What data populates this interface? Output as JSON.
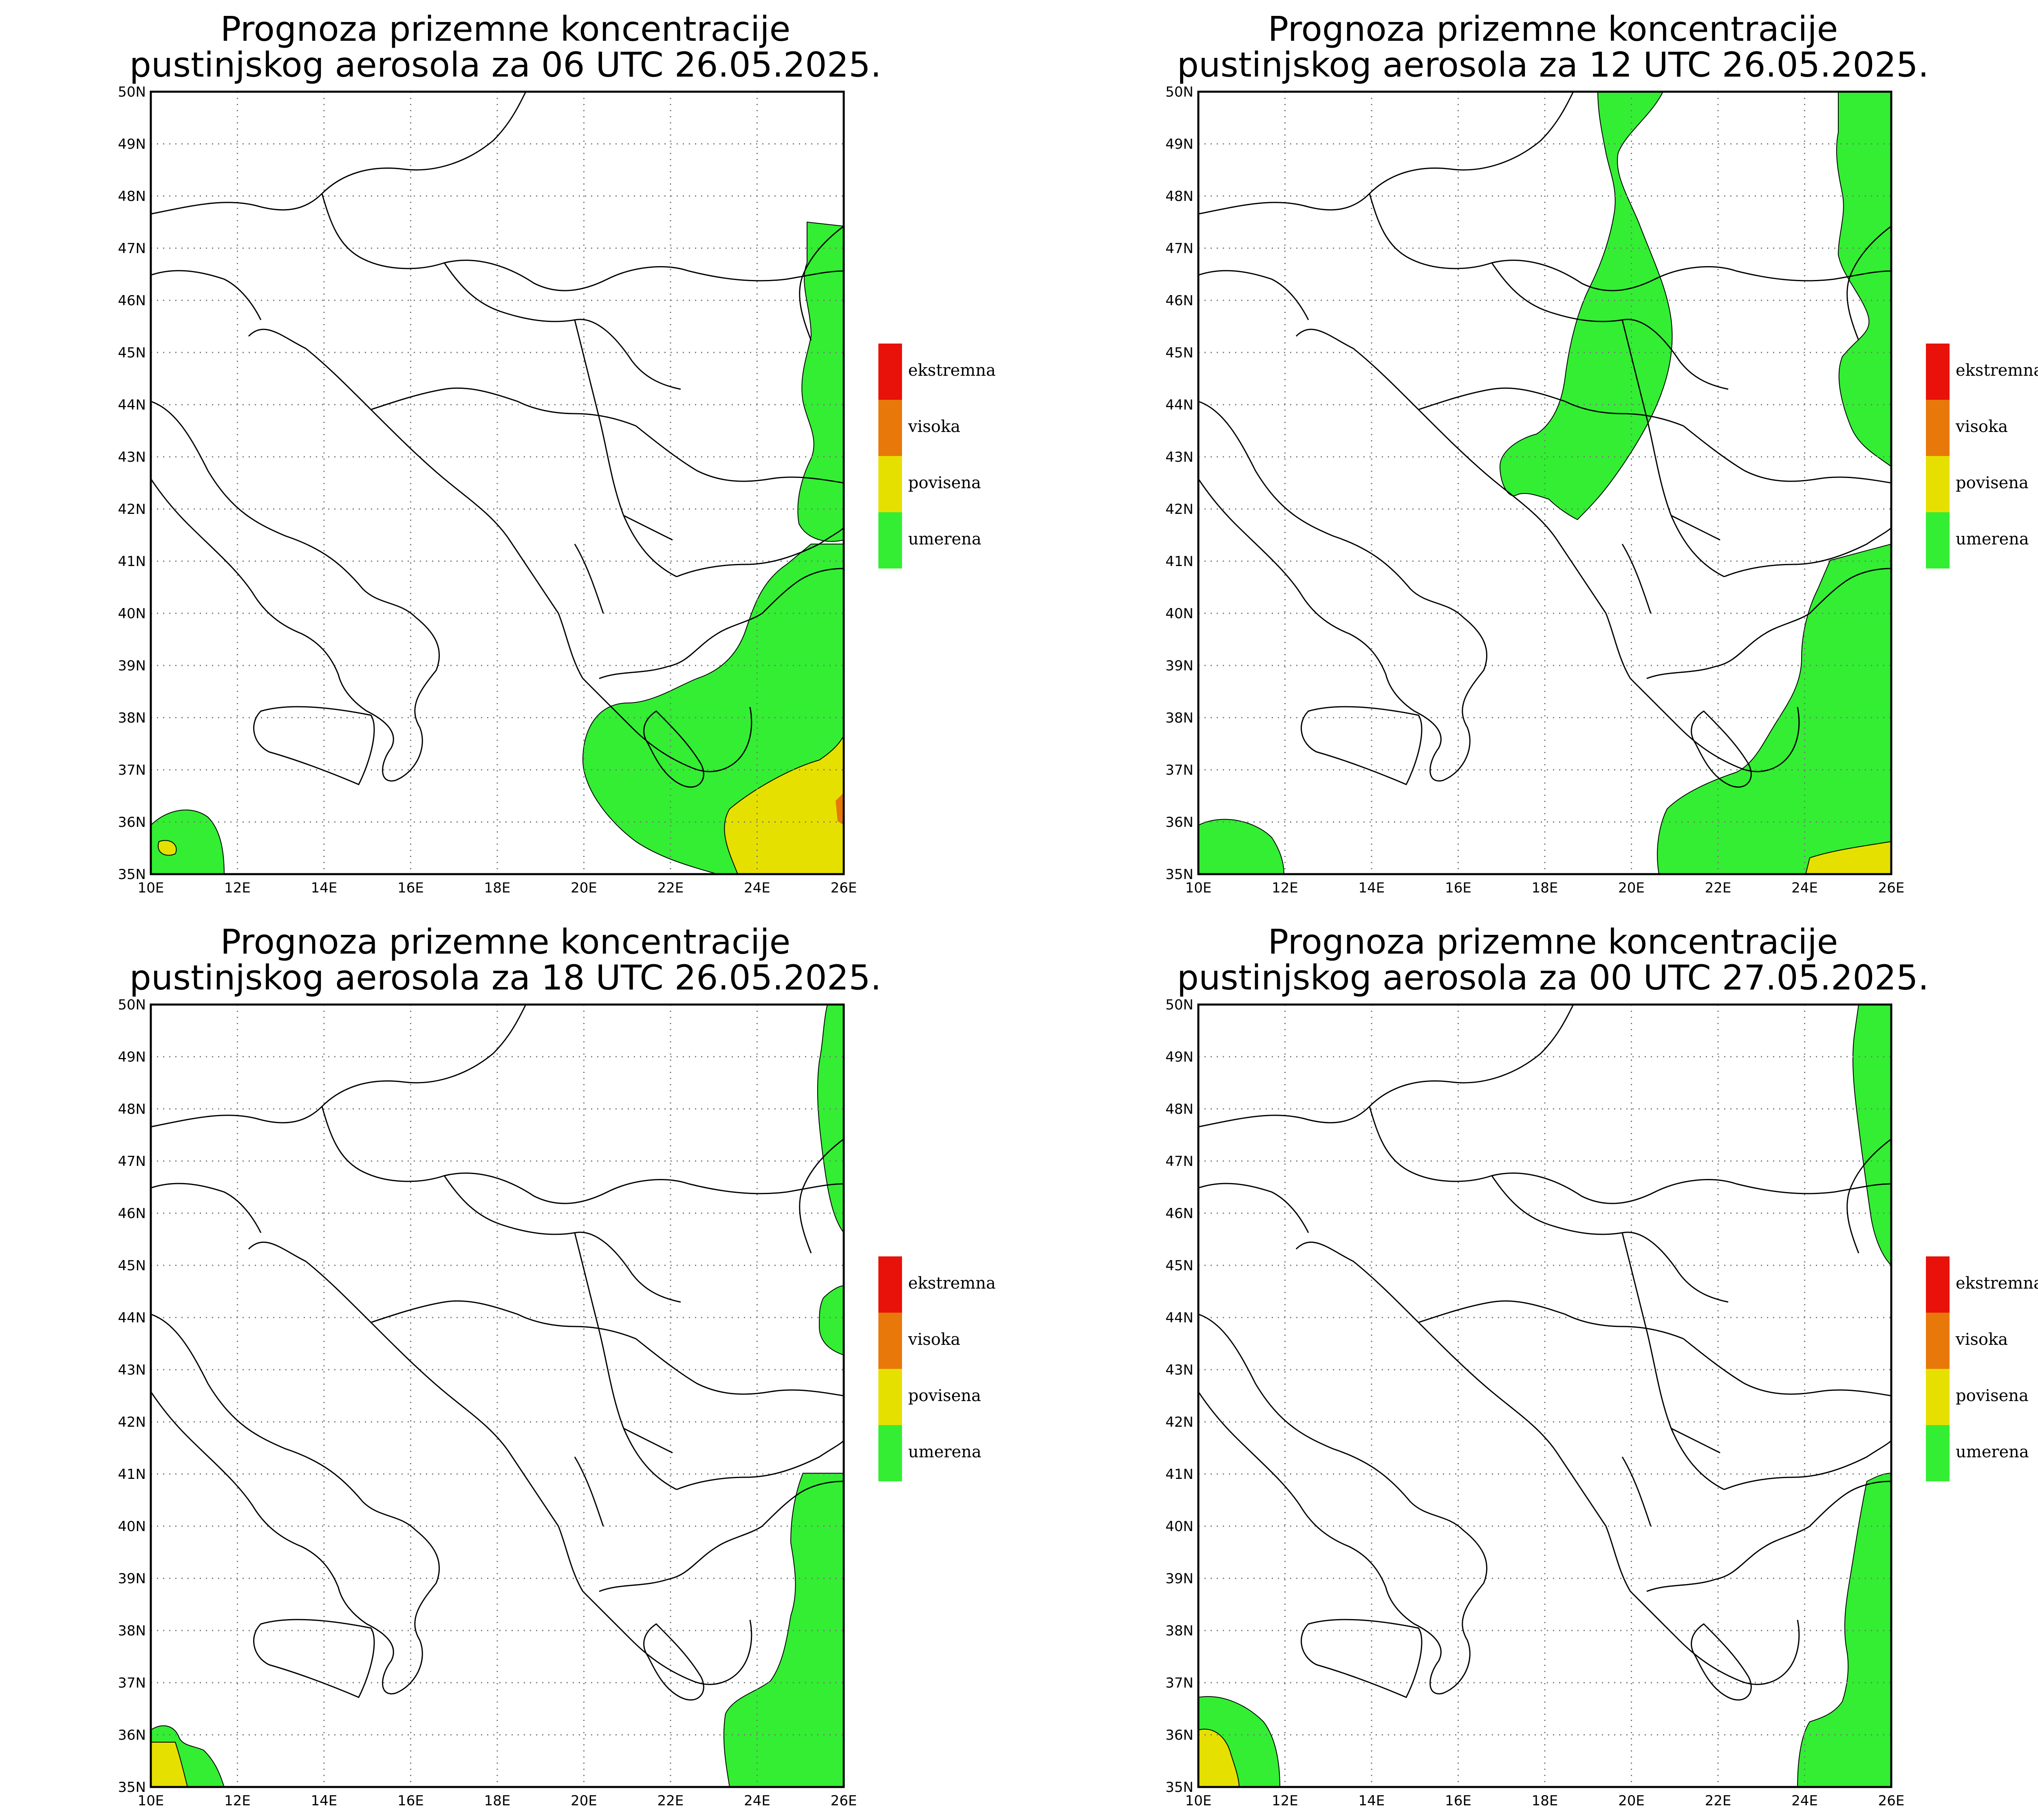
{
  "palette": {
    "ekstremna": "#e8120a",
    "visoka": "#e8780a",
    "povisena": "#e6e000",
    "umerena": "#33ee33"
  },
  "legend": [
    {
      "key": "ekstremna",
      "label": "ekstremna"
    },
    {
      "key": "visoka",
      "label": "visoka"
    },
    {
      "key": "povisena",
      "label": "povisena"
    },
    {
      "key": "umerena",
      "label": "umerena"
    }
  ],
  "axes": {
    "lon_ticks": [
      "10E",
      "12E",
      "14E",
      "16E",
      "18E",
      "20E",
      "22E",
      "24E",
      "26E"
    ],
    "lat_ticks": [
      "50N",
      "49N",
      "48N",
      "47N",
      "46N",
      "45N",
      "44N",
      "43N",
      "42N",
      "41N",
      "40N",
      "39N",
      "38N",
      "37N",
      "36N",
      "35N"
    ]
  },
  "panels": [
    {
      "id": "p06",
      "title1": "Prognoza prizemne koncentracije",
      "title2": "pustinjskog aerosola za 06 UTC 26.05.2025."
    },
    {
      "id": "p12",
      "title1": "Prognoza prizemne koncentracije",
      "title2": "pustinjskog aerosola za 12 UTC 26.05.2025."
    },
    {
      "id": "p18",
      "title1": "Prognoza prizemne koncentracije",
      "title2": "pustinjskog aerosola za 18 UTC 26.05.2025."
    },
    {
      "id": "p00",
      "title1": "Prognoza prizemne koncentracije",
      "title2": "pustinjskog aerosola za 00 UTC 27.05.2025."
    }
  ]
}
